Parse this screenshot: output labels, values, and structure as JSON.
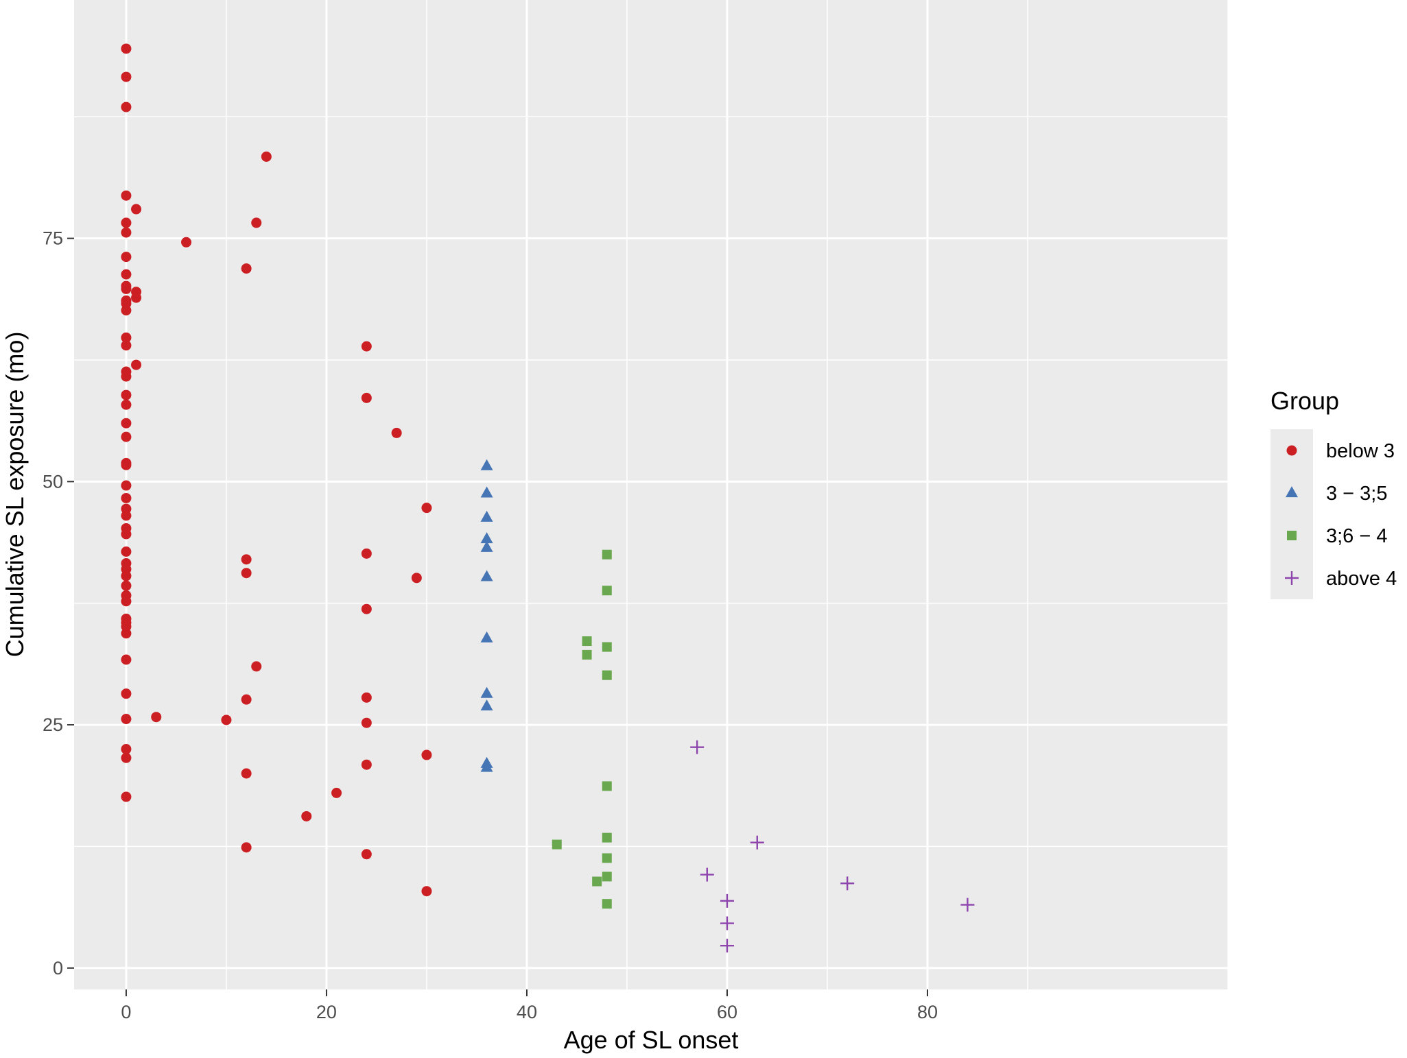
{
  "chart_data": {
    "type": "scatter",
    "title": "",
    "xlabel": "Age of SL onset",
    "ylabel": "Cumulative SL exposure (mo)",
    "xlim": [
      -5.2,
      110
    ],
    "ylim": [
      -2.2,
      99.5
    ],
    "x_ticks": [
      0,
      20,
      40,
      60,
      80
    ],
    "y_ticks": [
      0,
      25,
      50,
      75
    ],
    "x_tick_labels": [
      "0",
      "20",
      "40",
      "60",
      "80"
    ],
    "y_tick_labels": [
      "0",
      "25",
      "50",
      "75"
    ],
    "grid": true,
    "legend": {
      "title": "Group",
      "position": "right"
    },
    "series": [
      {
        "name": "below 3",
        "shape": "circle",
        "color": "#CC1F24",
        "points": [
          [
            0,
            94.5
          ],
          [
            0,
            91.6
          ],
          [
            0,
            88.5
          ],
          [
            0,
            79.4
          ],
          [
            0,
            76.6
          ],
          [
            0,
            75.6
          ],
          [
            0,
            73.1
          ],
          [
            0,
            71.3
          ],
          [
            0,
            70.1
          ],
          [
            0,
            69.8
          ],
          [
            0,
            68.6
          ],
          [
            0,
            68.3
          ],
          [
            0,
            67.6
          ],
          [
            0,
            64.8
          ],
          [
            0,
            64.0
          ],
          [
            0,
            61.3
          ],
          [
            0,
            60.8
          ],
          [
            0,
            58.9
          ],
          [
            0,
            57.9
          ],
          [
            0,
            56.0
          ],
          [
            0,
            54.6
          ],
          [
            0,
            51.9
          ],
          [
            0,
            51.7
          ],
          [
            0,
            49.6
          ],
          [
            0,
            48.3
          ],
          [
            0,
            47.2
          ],
          [
            0,
            46.5
          ],
          [
            0,
            45.2
          ],
          [
            0,
            44.6
          ],
          [
            0,
            42.8
          ],
          [
            0,
            41.6
          ],
          [
            0,
            41.0
          ],
          [
            0,
            40.3
          ],
          [
            0,
            39.3
          ],
          [
            0,
            38.3
          ],
          [
            0,
            37.7
          ],
          [
            0,
            35.9
          ],
          [
            0,
            35.5
          ],
          [
            0,
            35.1
          ],
          [
            0,
            34.4
          ],
          [
            0,
            31.7
          ],
          [
            0,
            28.2
          ],
          [
            0,
            25.6
          ],
          [
            0,
            22.5
          ],
          [
            0,
            21.6
          ],
          [
            0,
            17.6
          ],
          [
            1,
            78.0
          ],
          [
            1,
            69.5
          ],
          [
            1,
            68.9
          ],
          [
            1,
            62.0
          ],
          [
            3,
            25.8
          ],
          [
            6,
            74.6
          ],
          [
            10,
            25.5
          ],
          [
            12,
            71.9
          ],
          [
            12,
            42.0
          ],
          [
            12,
            40.6
          ],
          [
            12,
            27.6
          ],
          [
            12,
            20.0
          ],
          [
            12,
            12.4
          ],
          [
            13,
            76.6
          ],
          [
            13,
            31.0
          ],
          [
            14,
            83.4
          ],
          [
            18,
            15.6
          ],
          [
            21,
            18.0
          ],
          [
            24,
            63.9
          ],
          [
            24,
            58.6
          ],
          [
            24,
            42.6
          ],
          [
            24,
            36.9
          ],
          [
            24,
            27.8
          ],
          [
            24,
            25.2
          ],
          [
            24,
            20.9
          ],
          [
            24,
            11.7
          ],
          [
            27,
            55.0
          ],
          [
            29,
            40.1
          ],
          [
            30,
            47.3
          ],
          [
            30,
            21.9
          ],
          [
            30,
            7.9
          ]
        ]
      },
      {
        "name": "3 − 3;5",
        "shape": "triangle",
        "color": "#4575B4",
        "points": [
          [
            36,
            51.6
          ],
          [
            36,
            48.8
          ],
          [
            36,
            46.3
          ],
          [
            36,
            44.1
          ],
          [
            36,
            43.2
          ],
          [
            36,
            40.2
          ],
          [
            36,
            33.9
          ],
          [
            36,
            28.2
          ],
          [
            36,
            26.9
          ],
          [
            36,
            21.0
          ],
          [
            36,
            20.6
          ]
        ]
      },
      {
        "name": "3;6 − 4",
        "shape": "square",
        "color": "#6AA84F",
        "points": [
          [
            43,
            12.7
          ],
          [
            46,
            33.6
          ],
          [
            46,
            32.2
          ],
          [
            47,
            8.9
          ],
          [
            48,
            42.5
          ],
          [
            48,
            38.8
          ],
          [
            48,
            33.0
          ],
          [
            48,
            30.1
          ],
          [
            48,
            18.7
          ],
          [
            48,
            13.4
          ],
          [
            48,
            11.3
          ],
          [
            48,
            9.4
          ],
          [
            48,
            6.6
          ]
        ]
      },
      {
        "name": "above 4",
        "shape": "plus",
        "color": "#8E44AD",
        "points": [
          [
            57,
            22.7
          ],
          [
            58,
            9.6
          ],
          [
            60,
            6.9
          ],
          [
            60,
            4.6
          ],
          [
            60,
            2.3
          ],
          [
            63,
            12.9
          ],
          [
            72,
            8.7
          ],
          [
            84,
            6.5
          ]
        ]
      }
    ]
  }
}
